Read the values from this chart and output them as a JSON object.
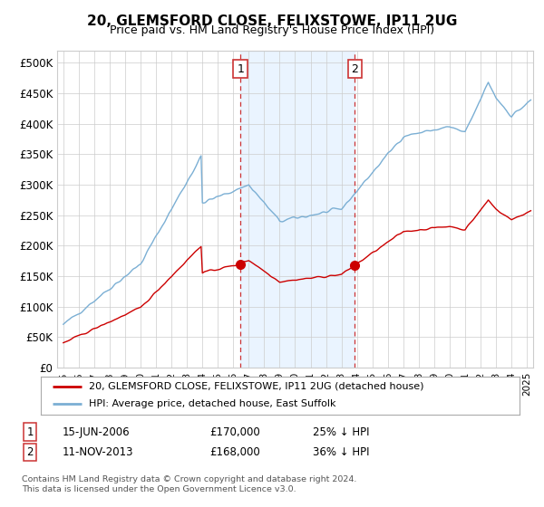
{
  "title": "20, GLEMSFORD CLOSE, FELIXSTOWE, IP11 2UG",
  "subtitle": "Price paid vs. HM Land Registry's House Price Index (HPI)",
  "hpi_color": "#7bafd4",
  "price_color": "#cc0000",
  "bg_color": "#ffffff",
  "plot_bg_color": "#ffffff",
  "grid_color": "#cccccc",
  "legend_entry1": "20, GLEMSFORD CLOSE, FELIXSTOWE, IP11 2UG (detached house)",
  "legend_entry2": "HPI: Average price, detached house, East Suffolk",
  "table_row1": [
    "1",
    "15-JUN-2006",
    "£170,000",
    "25% ↓ HPI"
  ],
  "table_row2": [
    "2",
    "11-NOV-2013",
    "£168,000",
    "36% ↓ HPI"
  ],
  "footer": "Contains HM Land Registry data © Crown copyright and database right 2024.\nThis data is licensed under the Open Government Licence v3.0.",
  "ylim": [
    0,
    520000
  ],
  "yticks": [
    0,
    50000,
    100000,
    150000,
    200000,
    250000,
    300000,
    350000,
    400000,
    450000,
    500000
  ],
  "xlim_start": 1994.6,
  "xlim_end": 2025.4,
  "xticks": [
    1995,
    1996,
    1997,
    1998,
    1999,
    2000,
    2001,
    2002,
    2003,
    2004,
    2005,
    2006,
    2007,
    2008,
    2009,
    2010,
    2011,
    2012,
    2013,
    2014,
    2015,
    2016,
    2017,
    2018,
    2019,
    2020,
    2021,
    2022,
    2023,
    2024,
    2025
  ],
  "marker1_x": 2006.46,
  "marker2_x": 2013.87,
  "marker1_y": 170000,
  "marker2_y": 168000,
  "span_color": "#ddeeff",
  "span_alpha": 0.6
}
